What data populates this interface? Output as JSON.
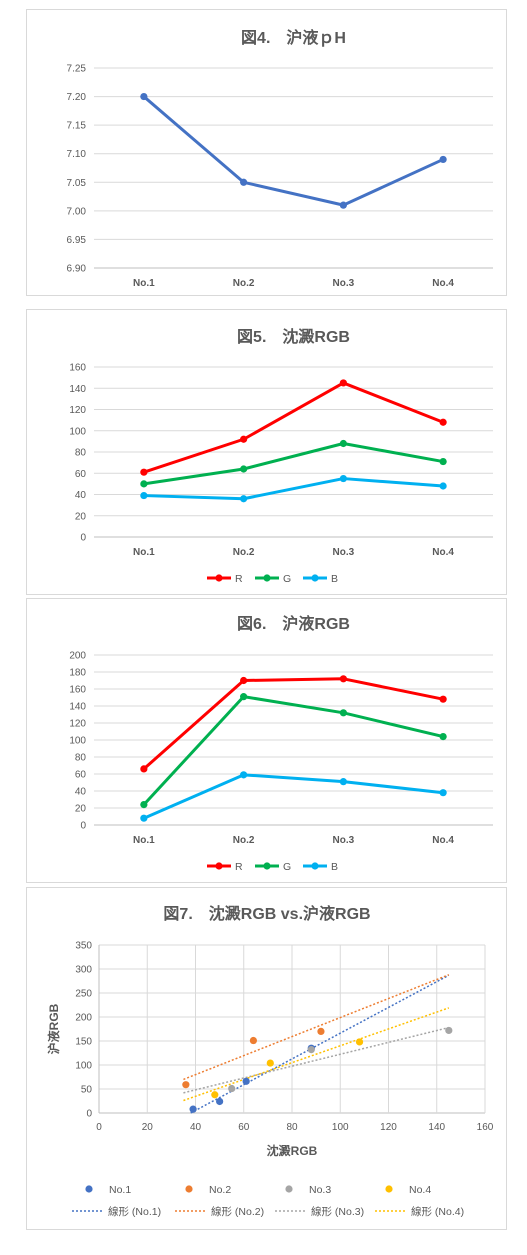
{
  "colors": {
    "line_blue": "#4472c4",
    "R": "#ff0000",
    "G": "#00b050",
    "B": "#00b0f0",
    "no1": "#4472c4",
    "no2": "#ed7d31",
    "no3": "#a5a5a5",
    "no4": "#ffc000"
  },
  "chart_data": [
    {
      "type": "line",
      "title": "図4.　沪液ｐH",
      "categories": [
        "No.1",
        "No.2",
        "No.3",
        "No.4"
      ],
      "series": [
        {
          "values": [
            7.2,
            7.05,
            7.01,
            7.09
          ]
        }
      ],
      "ylim": [
        6.9,
        7.25
      ],
      "yticks": [
        "7.25",
        "7.20",
        "7.15",
        "7.10",
        "7.05",
        "7.00",
        "6.95",
        "6.90"
      ],
      "grid": true,
      "legend": "none"
    },
    {
      "type": "line",
      "title": "図5.　沈澱RGB",
      "categories": [
        "No.1",
        "No.2",
        "No.3",
        "No.4"
      ],
      "series": [
        {
          "name": "R",
          "values": [
            61,
            92,
            145,
            108
          ]
        },
        {
          "name": "G",
          "values": [
            50,
            64,
            88,
            71
          ]
        },
        {
          "name": "B",
          "values": [
            39,
            36,
            55,
            48
          ]
        }
      ],
      "ylim": [
        0,
        160
      ],
      "yticks": [
        "160",
        "140",
        "120",
        "100",
        "80",
        "60",
        "40",
        "20",
        "0"
      ],
      "grid": true,
      "legend": "bottom"
    },
    {
      "type": "line",
      "title": "図6.　沪液RGB",
      "categories": [
        "No.1",
        "No.2",
        "No.3",
        "No.4"
      ],
      "series": [
        {
          "name": "R",
          "values": [
            66,
            170,
            172,
            148
          ]
        },
        {
          "name": "G",
          "values": [
            24,
            151,
            132,
            104
          ]
        },
        {
          "name": "B",
          "values": [
            8,
            59,
            51,
            38
          ]
        }
      ],
      "ylim": [
        0,
        200
      ],
      "yticks": [
        "200",
        "180",
        "160",
        "140",
        "120",
        "100",
        "80",
        "60",
        "40",
        "20",
        "0"
      ],
      "grid": true,
      "legend": "bottom"
    },
    {
      "type": "scatter",
      "title": "図7.　沈澱RGB vs.沪液RGB",
      "xlabel": "沈澱RGB",
      "ylabel": "沪液RGB",
      "xlim": [
        0,
        160
      ],
      "ylim": [
        0,
        350
      ],
      "xticks": [
        "0",
        "20",
        "40",
        "60",
        "80",
        "100",
        "120",
        "140",
        "160"
      ],
      "yticks": [
        "350",
        "300",
        "250",
        "200",
        "150",
        "100",
        "50",
        "0"
      ],
      "grid": true,
      "legend": "bottom",
      "series": [
        {
          "name": "No.1",
          "points": [
            [
              61,
              66
            ],
            [
              50,
              24
            ],
            [
              39,
              8
            ],
            [
              88,
              135
            ]
          ]
        },
        {
          "name": "No.2",
          "points": [
            [
              92,
              170
            ],
            [
              64,
              151
            ],
            [
              36,
              59
            ]
          ]
        },
        {
          "name": "No.3",
          "points": [
            [
              145,
              172
            ],
            [
              88,
              132
            ],
            [
              55,
              51
            ]
          ]
        },
        {
          "name": "No.4",
          "points": [
            [
              108,
              148
            ],
            [
              71,
              104
            ],
            [
              48,
              38
            ]
          ]
        }
      ],
      "trendlines": [
        {
          "name": "線形 (No.1)",
          "series": "No.1",
          "x": [
            38,
            145
          ],
          "y": [
            0,
            287
          ]
        },
        {
          "name": "線形 (No.2)",
          "series": "No.2",
          "x": [
            35,
            145
          ],
          "y": [
            70,
            288
          ]
        },
        {
          "name": "線形 (No.3)",
          "series": "No.3",
          "x": [
            35,
            145
          ],
          "y": [
            42,
            178
          ]
        },
        {
          "name": "線形 (No.4)",
          "series": "No.4",
          "x": [
            35,
            145
          ],
          "y": [
            26,
            219
          ]
        }
      ]
    }
  ]
}
